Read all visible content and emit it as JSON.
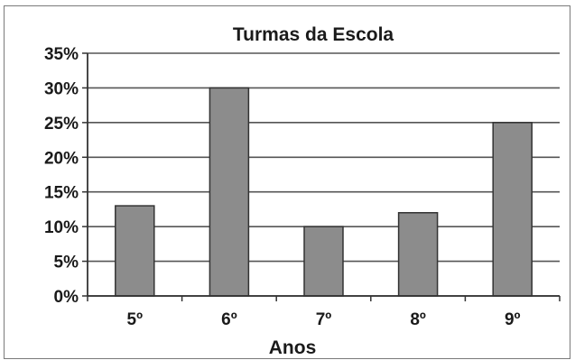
{
  "chart_data": {
    "type": "bar",
    "title": "Turmas da Escola",
    "xlabel": "Anos",
    "ylabel": "",
    "categories": [
      "5º",
      "6º",
      "7º",
      "8º",
      "9º"
    ],
    "values": [
      13,
      30,
      10,
      12,
      25
    ],
    "value_format": "percent",
    "ylim": [
      0,
      35
    ],
    "ytick_step": 5,
    "yticks": [
      "0%",
      "5%",
      "10%",
      "15%",
      "20%",
      "25%",
      "30%",
      "35%"
    ],
    "grid": true,
    "legend": "none",
    "bar_color": "#8c8c8c",
    "bar_edge_color": "#333333",
    "grid_color": "#555555"
  }
}
